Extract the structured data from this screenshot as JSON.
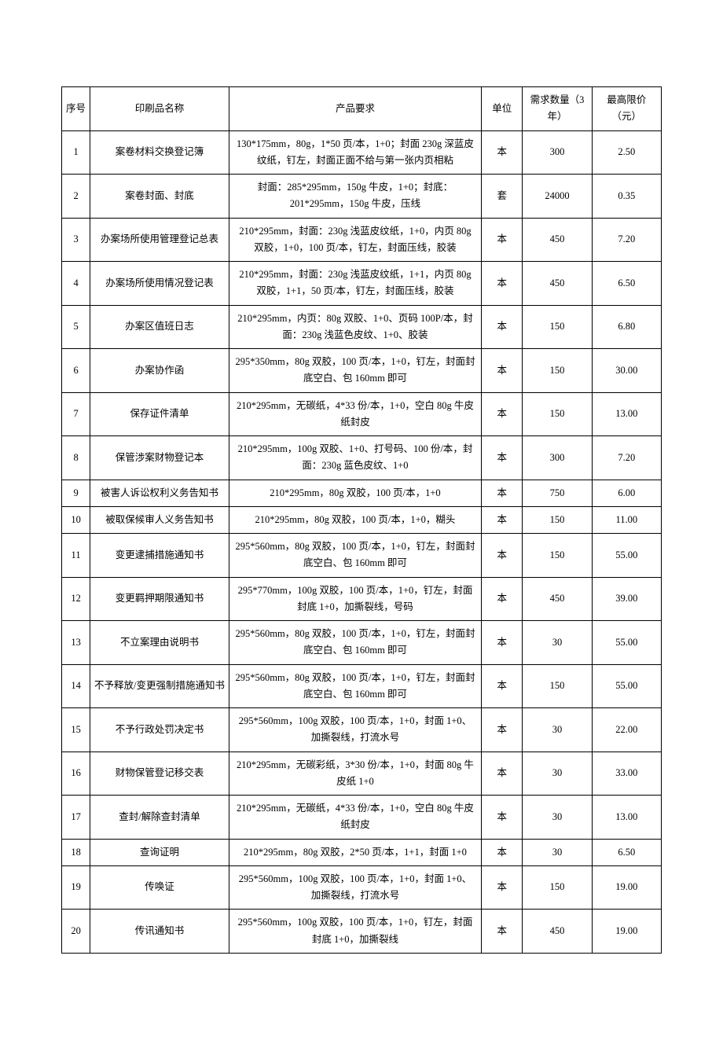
{
  "table": {
    "type": "table",
    "columns": [
      {
        "key": "seq",
        "label": "序号",
        "width_pct": 4.5,
        "align": "center"
      },
      {
        "key": "name",
        "label": "印刷品名称",
        "width_pct": 22,
        "align": "center"
      },
      {
        "key": "req",
        "label": "产品要求",
        "width_pct": 40,
        "align": "center"
      },
      {
        "key": "unit",
        "label": "单位",
        "width_pct": 6.5,
        "align": "center"
      },
      {
        "key": "qty",
        "label": "需求数量（3 年）",
        "width_pct": 11,
        "align": "center"
      },
      {
        "key": "price",
        "label": "最高限价（元）",
        "width_pct": 11,
        "align": "center"
      }
    ],
    "rows": [
      {
        "seq": "1",
        "name": "案卷材料交换登记簿",
        "req": "130*175mm，80g，1*50 页/本，1+0；封面 230g 深蓝皮纹纸，钉左，封面正面不给与第一张内页相粘",
        "unit": "本",
        "qty": "300",
        "price": "2.50"
      },
      {
        "seq": "2",
        "name": "案卷封面、封底",
        "req": "封面：285*295mm，150g 牛皮，1+0；封底：201*295mm，150g 牛皮，压线",
        "unit": "套",
        "qty": "24000",
        "price": "0.35"
      },
      {
        "seq": "3",
        "name": "办案场所使用管理登记总表",
        "req": "210*295mm，封面：230g 浅蓝皮纹纸，1+0，内页 80g 双胶，1+0，100 页/本，钉左，封面压线，胶装",
        "unit": "本",
        "qty": "450",
        "price": "7.20"
      },
      {
        "seq": "4",
        "name": "办案场所使用情况登记表",
        "req": "210*295mm，封面：230g 浅蓝皮纹纸，1+1，内页 80g 双胶，1+1，50 页/本，钉左，封面压线，胶装",
        "unit": "本",
        "qty": "450",
        "price": "6.50"
      },
      {
        "seq": "5",
        "name": "办案区值班日志",
        "req": "210*295mm，内页：80g 双胶、1+0、页码 100P/本，封面：230g 浅蓝色皮纹、1+0、胶装",
        "unit": "本",
        "qty": "150",
        "price": "6.80"
      },
      {
        "seq": "6",
        "name": "办案协作函",
        "req": "295*350mm，80g 双胶，100 页/本，1+0，钉左，封面封底空白、包 160mm 即可",
        "unit": "本",
        "qty": "150",
        "price": "30.00"
      },
      {
        "seq": "7",
        "name": "保存证件清单",
        "req": "210*295mm，无碳纸，4*33 份/本，1+0，空白 80g 牛皮纸封皮",
        "unit": "本",
        "qty": "150",
        "price": "13.00"
      },
      {
        "seq": "8",
        "name": "保管涉案财物登记本",
        "req": "210*295mm，100g 双胶、1+0、打号码、100 份/本，封面：230g 蓝色皮纹、1+0",
        "unit": "本",
        "qty": "300",
        "price": "7.20"
      },
      {
        "seq": "9",
        "name": "被害人诉讼权利义务告知书",
        "req": "210*295mm，80g 双胶，100 页/本，1+0",
        "unit": "本",
        "qty": "750",
        "price": "6.00"
      },
      {
        "seq": "10",
        "name": "被取保候审人义务告知书",
        "req": "210*295mm，80g 双胶，100 页/本，1+0，糊头",
        "unit": "本",
        "qty": "150",
        "price": "11.00"
      },
      {
        "seq": "11",
        "name": "变更逮捕措施通知书",
        "req": "295*560mm，80g 双胶，100 页/本，1+0，钉左，封面封底空白、包 160mm 即可",
        "unit": "本",
        "qty": "150",
        "price": "55.00"
      },
      {
        "seq": "12",
        "name": "变更羁押期限通知书",
        "req": "295*770mm，100g 双胶，100 页/本，1+0，钉左，封面封底 1+0，加撕裂线，号码",
        "unit": "本",
        "qty": "450",
        "price": "39.00"
      },
      {
        "seq": "13",
        "name": "不立案理由说明书",
        "req": "295*560mm，80g 双胶，100 页/本，1+0，钉左，封面封底空白、包 160mm 即可",
        "unit": "本",
        "qty": "30",
        "price": "55.00"
      },
      {
        "seq": "14",
        "name": "不予释放/变更强制措施通知书",
        "req": "295*560mm，80g 双胶，100 页/本，1+0，钉左，封面封底空白、包 160mm 即可",
        "unit": "本",
        "qty": "150",
        "price": "55.00"
      },
      {
        "seq": "15",
        "name": "不予行政处罚决定书",
        "req": "295*560mm，100g 双胶，100 页/本，1+0，封面 1+0、加撕裂线，打流水号",
        "unit": "本",
        "qty": "30",
        "price": "22.00"
      },
      {
        "seq": "16",
        "name": "财物保管登记移交表",
        "req": "210*295mm，无碳彩纸，3*30 份/本，1+0，封面 80g 牛皮纸 1+0",
        "unit": "本",
        "qty": "30",
        "price": "33.00"
      },
      {
        "seq": "17",
        "name": "查封/解除查封清单",
        "req": "210*295mm，无碳纸，4*33 份/本，1+0，空白 80g 牛皮纸封皮",
        "unit": "本",
        "qty": "30",
        "price": "13.00"
      },
      {
        "seq": "18",
        "name": "查询证明",
        "req": "210*295mm，80g 双胶，2*50 页/本，1+1，封面 1+0",
        "unit": "本",
        "qty": "30",
        "price": "6.50"
      },
      {
        "seq": "19",
        "name": "传唤证",
        "req": "295*560mm，100g 双胶，100 页/本，1+0，封面 1+0、加撕裂线，打流水号",
        "unit": "本",
        "qty": "150",
        "price": "19.00"
      },
      {
        "seq": "20",
        "name": "传讯通知书",
        "req": "295*560mm，100g 双胶，100 页/本，1+0，钉左，封面封底 1+0，加撕裂线",
        "unit": "本",
        "qty": "450",
        "price": "19.00"
      }
    ],
    "border_color": "#000000",
    "background_color": "#ffffff",
    "text_color": "#000000",
    "font_family": "SimSun",
    "font_size_pt": 9,
    "line_height": 1.7
  }
}
